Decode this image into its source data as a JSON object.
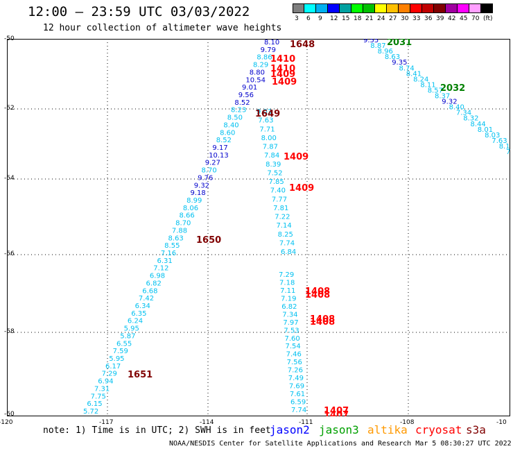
{
  "header": {
    "title": "12:00 – 23:59 UTC 03/03/2022",
    "subtitle": "12 hour collection of altimeter wave heights"
  },
  "scale": {
    "colors": [
      "#7f7f7f",
      "#00ffff",
      "#00b0f0",
      "#0000ff",
      "#00a0a0",
      "#00ff00",
      "#00c000",
      "#ffff00",
      "#ffc000",
      "#ff8000",
      "#ff0000",
      "#c00000",
      "#800000",
      "#a000a0",
      "#ff00ff",
      "#ff9fff",
      "#000000"
    ],
    "labels": [
      "3",
      "6",
      "9",
      "12",
      "15",
      "18",
      "21",
      "24",
      "27",
      "30",
      "33",
      "36",
      "39",
      "42",
      "45",
      "70",
      "(ft)"
    ]
  },
  "axes": {
    "y_ticks": [
      "-50",
      "-52",
      "-54",
      "-56",
      "-58",
      "-60"
    ],
    "x_ticks": [
      "-120",
      "-117",
      "-114",
      "-111",
      "-108",
      "-10"
    ]
  },
  "swh_points": {
    "track_a": [
      [
        "8.10",
        "blue"
      ],
      [
        "9.79",
        "blue"
      ],
      [
        "8.86",
        "cyan"
      ],
      [
        "8.29",
        "cyan"
      ],
      [
        "8.80",
        "blue"
      ],
      [
        "10.54",
        "blue"
      ],
      [
        "9.01",
        "blue"
      ],
      [
        "9.56",
        "blue"
      ],
      [
        "8.52",
        "blue"
      ],
      [
        "8.23",
        "cyan"
      ],
      [
        "8.50",
        "cyan"
      ],
      [
        "8.40",
        "cyan"
      ],
      [
        "8.60",
        "cyan"
      ],
      [
        "8.52",
        "cyan"
      ],
      [
        "9.17",
        "blue"
      ],
      [
        "10.13",
        "blue"
      ],
      [
        "9.27",
        "blue"
      ],
      [
        "8.70",
        "cyan"
      ],
      [
        "9.76",
        "blue"
      ],
      [
        "9.32",
        "blue"
      ],
      [
        "9.18",
        "blue"
      ],
      [
        "8.99",
        "cyan"
      ],
      [
        "8.06",
        "cyan"
      ],
      [
        "8.66",
        "cyan"
      ],
      [
        "8.70",
        "cyan"
      ],
      [
        "7.88",
        "cyan"
      ],
      [
        "8.63",
        "cyan"
      ],
      [
        "8.55",
        "cyan"
      ],
      [
        "7.16",
        "cyan"
      ],
      [
        "6.31",
        "cyan"
      ],
      [
        "7.12",
        "cyan"
      ],
      [
        "6.98",
        "cyan"
      ],
      [
        "6.82",
        "cyan"
      ],
      [
        "6.68",
        "cyan"
      ],
      [
        "7.42",
        "cyan"
      ],
      [
        "6.34",
        "cyan"
      ],
      [
        "6.35",
        "cyan"
      ],
      [
        "6.24",
        "cyan"
      ],
      [
        "5.95",
        "cyan"
      ],
      [
        "5.87",
        "cyan"
      ],
      [
        "6.55",
        "cyan"
      ],
      [
        "7.59",
        "cyan"
      ],
      [
        "5.95",
        "cyan"
      ],
      [
        "6.17",
        "cyan"
      ],
      [
        "7.29",
        "cyan"
      ],
      [
        "6.94",
        "cyan"
      ],
      [
        "7.31",
        "cyan"
      ],
      [
        "7.75",
        "cyan"
      ],
      [
        "6.15",
        "cyan"
      ],
      [
        "5.72",
        "cyan"
      ]
    ],
    "track_b": [
      [
        "9.03",
        "cyan"
      ],
      [
        "7.63",
        "cyan"
      ],
      [
        "7.71",
        "cyan"
      ],
      [
        "8.00",
        "cyan"
      ],
      [
        "7.87",
        "cyan"
      ],
      [
        "7.84",
        "cyan"
      ],
      [
        "8.39",
        "cyan"
      ],
      [
        "7.52",
        "cyan"
      ],
      [
        "7.85",
        "cyan"
      ],
      [
        "7.40",
        "cyan"
      ],
      [
        "7.77",
        "cyan"
      ],
      [
        "7.81",
        "cyan"
      ],
      [
        "7.22",
        "cyan"
      ],
      [
        "7.14",
        "cyan"
      ],
      [
        "8.25",
        "cyan"
      ],
      [
        "7.74",
        "cyan"
      ],
      [
        "6.84",
        "cyan"
      ]
    ],
    "track_c": [
      [
        "7.29",
        "cyan"
      ],
      [
        "7.18",
        "cyan"
      ],
      [
        "7.11",
        "cyan"
      ],
      [
        "7.19",
        "cyan"
      ],
      [
        "6.82",
        "cyan"
      ],
      [
        "7.34",
        "cyan"
      ],
      [
        "7.97",
        "cyan"
      ],
      [
        "7.53",
        "cyan"
      ],
      [
        "7.60",
        "cyan"
      ],
      [
        "7.54",
        "cyan"
      ],
      [
        "7.46",
        "cyan"
      ],
      [
        "7.56",
        "cyan"
      ],
      [
        "7.26",
        "cyan"
      ],
      [
        "7.49",
        "cyan"
      ],
      [
        "7.69",
        "cyan"
      ],
      [
        "7.61",
        "cyan"
      ],
      [
        "6.59",
        "cyan"
      ],
      [
        "7.74",
        "cyan"
      ]
    ],
    "track_d": [
      [
        "9.55",
        "blue"
      ],
      [
        "8.87",
        "cyan"
      ],
      [
        "8.96",
        "cyan"
      ],
      [
        "8.63",
        "cyan"
      ],
      [
        "9.35",
        "blue"
      ],
      [
        "8.74",
        "cyan"
      ],
      [
        "8.41",
        "cyan"
      ],
      [
        "8.24",
        "cyan"
      ],
      [
        "8.11",
        "cyan"
      ],
      [
        "8.57",
        "cyan"
      ],
      [
        "8.37",
        "cyan"
      ],
      [
        "9.32",
        "blue"
      ],
      [
        "8.40",
        "cyan"
      ],
      [
        "7.34",
        "cyan"
      ],
      [
        "8.32",
        "cyan"
      ],
      [
        "8.44",
        "cyan"
      ],
      [
        "8.01",
        "cyan"
      ],
      [
        "8.03",
        "cyan"
      ],
      [
        "7.63",
        "cyan"
      ],
      [
        "8.10",
        "cyan"
      ],
      [
        "7.",
        "cyan"
      ]
    ]
  },
  "time_labels": [
    {
      "text": "1648",
      "color": "#800000"
    },
    {
      "text": "1410",
      "color": "#ff0000"
    },
    {
      "text": "1410",
      "color": "#ff0000"
    },
    {
      "text": "1409",
      "color": "#ff0000"
    },
    {
      "text": "1409",
      "color": "#ff0000"
    },
    {
      "text": "1649",
      "color": "#800000"
    },
    {
      "text": "1409",
      "color": "#ff0000"
    },
    {
      "text": "1409",
      "color": "#ff0000"
    },
    {
      "text": "1650",
      "color": "#800000"
    },
    {
      "text": "1408",
      "color": "#ff0000"
    },
    {
      "text": "1408",
      "color": "#ff0000"
    },
    {
      "text": "1408",
      "color": "#ff0000"
    },
    {
      "text": "1408",
      "color": "#ff0000"
    },
    {
      "text": "1651",
      "color": "#800000"
    },
    {
      "text": "1407",
      "color": "#ff0000"
    },
    {
      "text": "1407",
      "color": "#ff0000"
    },
    {
      "text": "2031",
      "color": "#008000"
    },
    {
      "text": "2032",
      "color": "#008000"
    }
  ],
  "legend": {
    "note": "note:  1) Time is in UTC;  2) SWH is in feet",
    "sats": [
      {
        "label": "jason2",
        "color": "#0000ff"
      },
      {
        "label": "jason3",
        "color": "#00a000"
      },
      {
        "label": "altika",
        "color": "#ff9900"
      },
      {
        "label": "cryosat",
        "color": "#ff0000"
      },
      {
        "label": "s3a",
        "color": "#800000"
      }
    ]
  },
  "footer": "NOAA/NESDIS Center for Satellite Applications and Research   Mar  5 08:30:27 UTC 2022"
}
